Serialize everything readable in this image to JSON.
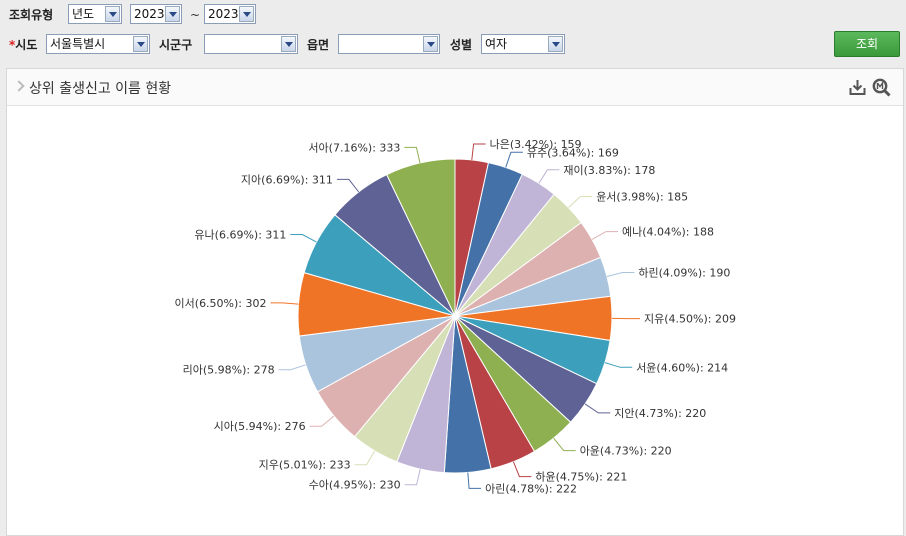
{
  "filters": {
    "type_label": "조회유형",
    "type_value": "년도",
    "year_from": "2023",
    "year_sep": "~",
    "year_to": "2023",
    "required_mark": "*",
    "sido_label": "시도",
    "sido_value": "서울특별시",
    "sigungu_label": "시군구",
    "sigungu_value": "",
    "eupmyeon_label": "읍면",
    "eupmyeon_value": "",
    "gender_label": "성별",
    "gender_value": "여자",
    "search_button": "조회"
  },
  "panel": {
    "title": "상위 출생신고 이름 현황",
    "icons": [
      "download-icon",
      "zoom-icon"
    ]
  },
  "chart_data": {
    "type": "pie",
    "title": "",
    "start_angle_deg": 0,
    "direction": "clockwise",
    "label_format": "{name}({pct}%): {value}",
    "slices": [
      {
        "name": "나은",
        "pct": "3.42",
        "value": 159,
        "color": "#b84245"
      },
      {
        "name": "유주",
        "pct": "3.64",
        "value": 169,
        "color": "#4472a8"
      },
      {
        "name": "재이",
        "pct": "3.83",
        "value": 178,
        "color": "#c0b5d6"
      },
      {
        "name": "윤서",
        "pct": "3.98",
        "value": 185,
        "color": "#d6dfb6"
      },
      {
        "name": "예나",
        "pct": "4.04",
        "value": 188,
        "color": "#deb1b1"
      },
      {
        "name": "하린",
        "pct": "4.09",
        "value": 190,
        "color": "#abc4de"
      },
      {
        "name": "지유",
        "pct": "4.50",
        "value": 209,
        "color": "#f07426"
      },
      {
        "name": "서윤",
        "pct": "4.60",
        "value": 214,
        "color": "#3c9fbb"
      },
      {
        "name": "지안",
        "pct": "4.73",
        "value": 220,
        "color": "#5e6294"
      },
      {
        "name": "아윤",
        "pct": "4.73",
        "value": 220,
        "color": "#8fb050"
      },
      {
        "name": "하윤",
        "pct": "4.75",
        "value": 221,
        "color": "#b84245"
      },
      {
        "name": "아린",
        "pct": "4.78",
        "value": 222,
        "color": "#4472a8"
      },
      {
        "name": "수아",
        "pct": "4.95",
        "value": 230,
        "color": "#c0b5d6"
      },
      {
        "name": "지우",
        "pct": "5.01",
        "value": 233,
        "color": "#d6dfb6"
      },
      {
        "name": "시아",
        "pct": "5.94",
        "value": 276,
        "color": "#deb1b1"
      },
      {
        "name": "리아",
        "pct": "5.98",
        "value": 278,
        "color": "#abc4de"
      },
      {
        "name": "이서",
        "pct": "6.50",
        "value": 302,
        "color": "#f07426"
      },
      {
        "name": "유나",
        "pct": "6.69",
        "value": 311,
        "color": "#3c9fbb"
      },
      {
        "name": "지아",
        "pct": "6.69",
        "value": 311,
        "color": "#5e6294"
      },
      {
        "name": "서아",
        "pct": "7.16",
        "value": 333,
        "color": "#8fb050"
      }
    ]
  }
}
